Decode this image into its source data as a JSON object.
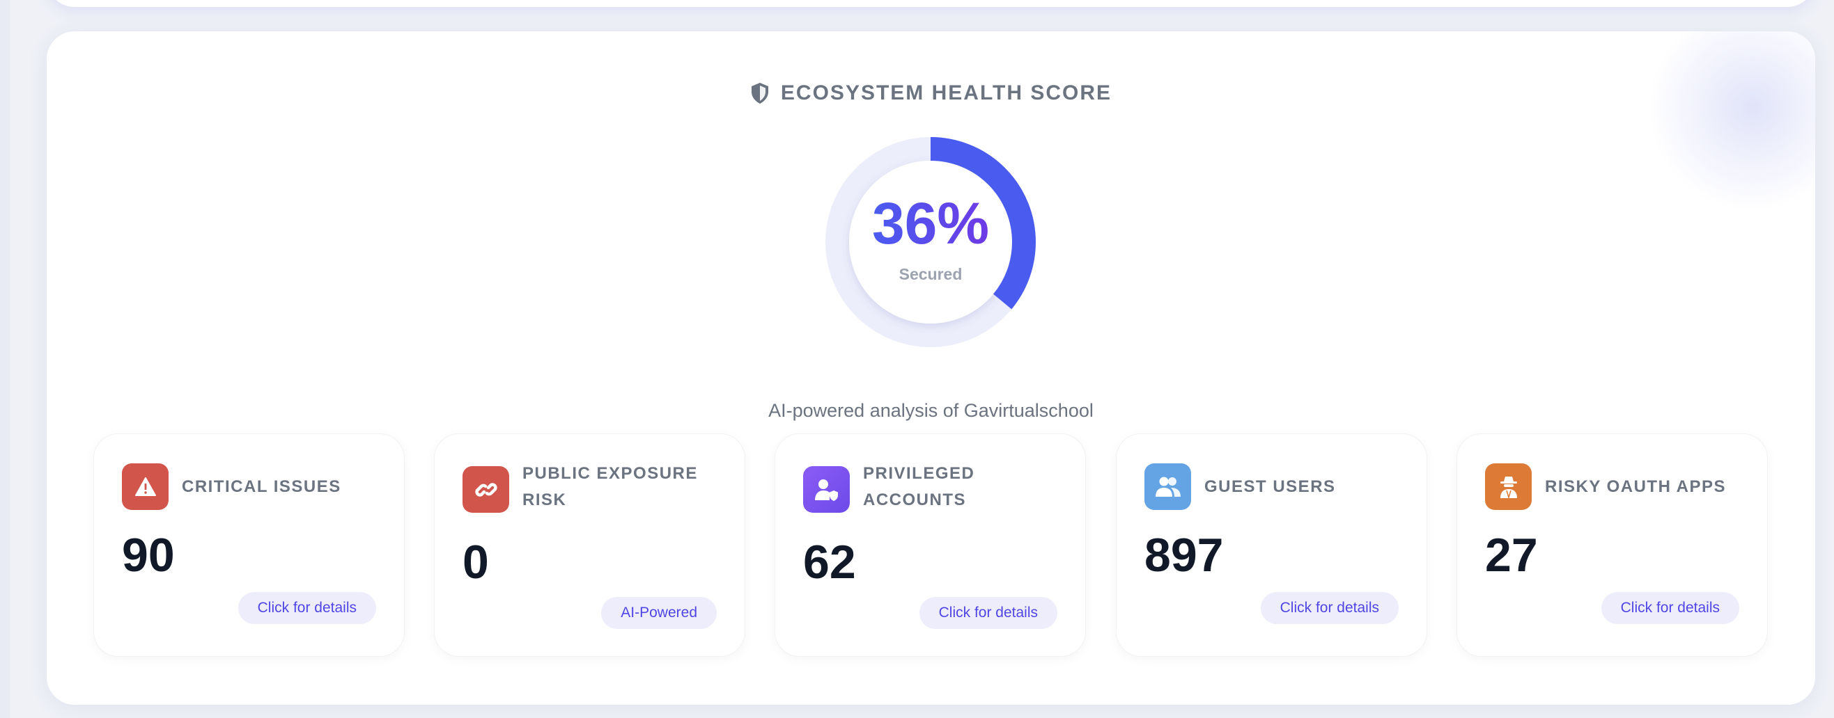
{
  "header": {
    "title": "ECOSYSTEM HEALTH SCORE",
    "icon": "shield-icon"
  },
  "score": {
    "value": "36%",
    "fraction": 0.36,
    "label": "Secured",
    "color": "#4a5cf0",
    "track_color": "#eceefb"
  },
  "subtitle": "AI-powered analysis of Gavirtualschool",
  "cards": [
    {
      "label": "CRITICAL ISSUES",
      "value": "90",
      "button": "Click for details",
      "icon": "warning-icon",
      "color": "#d2554b"
    },
    {
      "label": "PUBLIC EXPOSURE RISK",
      "value": "0",
      "button": "AI-Powered",
      "icon": "link-icon",
      "color": "#d2554b"
    },
    {
      "label": "PRIVILEGED ACCOUNTS",
      "value": "62",
      "button": "Click for details",
      "icon": "user-shield-icon",
      "color": "#8b5cf6"
    },
    {
      "label": "GUEST USERS",
      "value": "897",
      "button": "Click for details",
      "icon": "users-icon",
      "color": "#64a3e4"
    },
    {
      "label": "RISKY OAUTH APPS",
      "value": "27",
      "button": "Click for details",
      "icon": "spy-icon",
      "color": "#dd7b36"
    }
  ]
}
